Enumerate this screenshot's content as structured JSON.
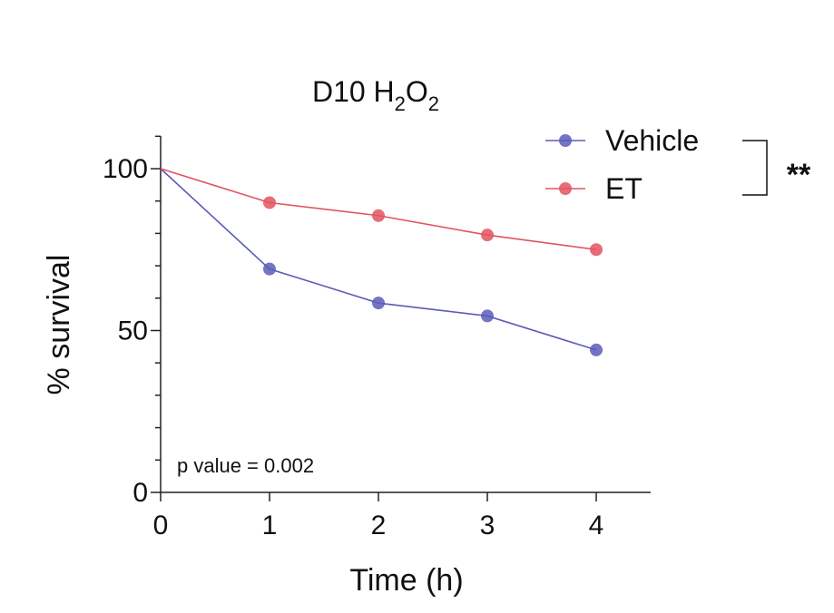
{
  "chart_data": {
    "type": "line",
    "title": {
      "prefix": "D10 H",
      "sub1": "2",
      "mid": "O",
      "sub2": "2"
    },
    "xlabel": "Time (h)",
    "ylabel": "% survival",
    "x": [
      0,
      1,
      2,
      3,
      4
    ],
    "xlim": [
      0,
      4.5
    ],
    "ylim": [
      0,
      110
    ],
    "x_ticks": [
      0,
      1,
      2,
      3,
      4
    ],
    "y_ticks_labeled": [
      0,
      50,
      100
    ],
    "y_minor_step": 10,
    "grid": false,
    "legend_position": "top-right",
    "series": [
      {
        "name": "Vehicle",
        "color": "#5b5cb8",
        "values": [
          100,
          69,
          58.5,
          54.5,
          44
        ]
      },
      {
        "name": "ET",
        "color": "#e2535f",
        "values": [
          100,
          89.5,
          85.5,
          79.5,
          75
        ]
      }
    ],
    "annotations": {
      "p_value": "p value = 0.002",
      "significance": "**"
    }
  }
}
